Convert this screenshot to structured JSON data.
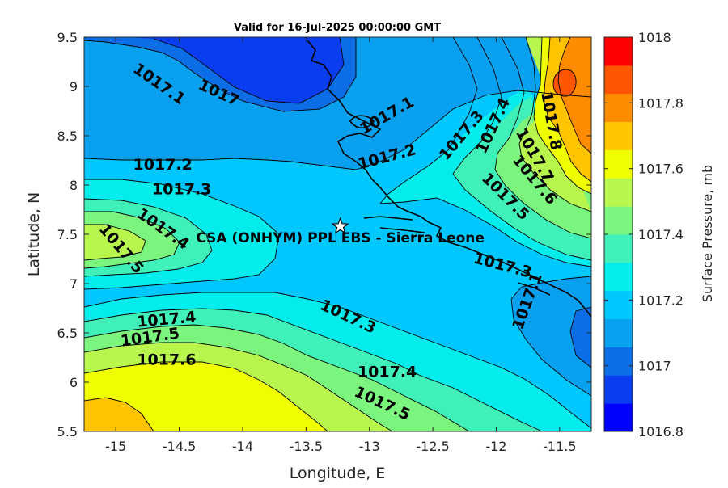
{
  "chart_data": {
    "type": "contour-map",
    "title": "Valid for 16-Jul-2025 00:00:00 GMT",
    "xlabel": "Longitude, E",
    "ylabel": "Latitude, N",
    "xlim": [
      -15.25,
      -11.25
    ],
    "ylim": [
      5.5,
      9.5
    ],
    "xticks": [
      "-15",
      "-14.5",
      "-14",
      "-13.5",
      "-13",
      "-12.5",
      "-12",
      "-11.5"
    ],
    "xtick_values": [
      -15,
      -14.5,
      -14,
      -13.5,
      -13,
      -12.5,
      -12,
      -11.5
    ],
    "yticks": [
      "5.5",
      "6",
      "6.5",
      "7",
      "7.5",
      "8",
      "8.5",
      "9",
      "9.5"
    ],
    "ytick_values": [
      5.5,
      6,
      6.5,
      7,
      7.5,
      8,
      8.5,
      9,
      9.5
    ],
    "colorbar": {
      "label": "Surface Pressure, mb",
      "range": [
        1016.8,
        1018
      ],
      "ticks": [
        "1016.8",
        "1017",
        "1017.2",
        "1017.4",
        "1017.6",
        "1017.8",
        "1018"
      ],
      "tick_values": [
        1016.8,
        1017,
        1017.2,
        1017.4,
        1017.6,
        1017.8,
        1018
      ],
      "colors": [
        "#0000ff",
        "#0a3cf0",
        "#0b6ee6",
        "#0aa0f0",
        "#00c8ff",
        "#05ecec",
        "#3ff0b8",
        "#7cf57f",
        "#b8f54d",
        "#f0ff00",
        "#ffc400",
        "#ff8c00",
        "#ff5500",
        "#ff0000"
      ]
    },
    "contour_labels": [
      {
        "text": "1017.1",
        "lon": -14.66,
        "lat": 9.02,
        "angle": 35
      },
      {
        "text": "1017",
        "lon": -14.19,
        "lat": 8.93,
        "angle": 25
      },
      {
        "text": "1017.1",
        "lon": -12.86,
        "lat": 8.7,
        "angle": -30
      },
      {
        "text": "1017.3",
        "lon": -12.27,
        "lat": 8.5,
        "angle": -50
      },
      {
        "text": "1017.4",
        "lon": -12.02,
        "lat": 8.6,
        "angle": -65
      },
      {
        "text": "1017.8",
        "lon": -11.57,
        "lat": 8.65,
        "angle": 80
      },
      {
        "text": "1017.7",
        "lon": -11.7,
        "lat": 8.3,
        "angle": 60
      },
      {
        "text": "1017.6",
        "lon": -11.7,
        "lat": 8.05,
        "angle": 50
      },
      {
        "text": "1017.5",
        "lon": -11.93,
        "lat": 7.88,
        "angle": 45
      },
      {
        "text": "1017.2",
        "lon": -14.63,
        "lat": 8.2,
        "angle": 0
      },
      {
        "text": "1017.3",
        "lon": -14.48,
        "lat": 7.95,
        "angle": 0
      },
      {
        "text": "1017.2",
        "lon": -12.86,
        "lat": 8.28,
        "angle": -15
      },
      {
        "text": "1017.4",
        "lon": -14.63,
        "lat": 7.55,
        "angle": 35
      },
      {
        "text": "1017.5",
        "lon": -14.96,
        "lat": 7.35,
        "angle": 50
      },
      {
        "text": "1017.3",
        "lon": -11.95,
        "lat": 7.18,
        "angle": 15
      },
      {
        "text": "1017.1",
        "lon": -11.75,
        "lat": 6.82,
        "angle": -70
      },
      {
        "text": "1017.4",
        "lon": -14.6,
        "lat": 6.63,
        "angle": -5
      },
      {
        "text": "1017.5",
        "lon": -14.73,
        "lat": 6.45,
        "angle": -8
      },
      {
        "text": "1017.6",
        "lon": -14.6,
        "lat": 6.22,
        "angle": 0
      },
      {
        "text": "1017.3",
        "lon": -13.17,
        "lat": 6.66,
        "angle": 25
      },
      {
        "text": "1017.4",
        "lon": -12.86,
        "lat": 6.1,
        "angle": 0
      },
      {
        "text": "1017.5",
        "lon": -12.9,
        "lat": 5.78,
        "angle": 25
      }
    ],
    "station": {
      "label": "CSA (ONHYM) PPL EBS  - Sierra Leone",
      "lon": -13.23,
      "lat": 7.58,
      "marker": "star"
    },
    "grid": false
  }
}
